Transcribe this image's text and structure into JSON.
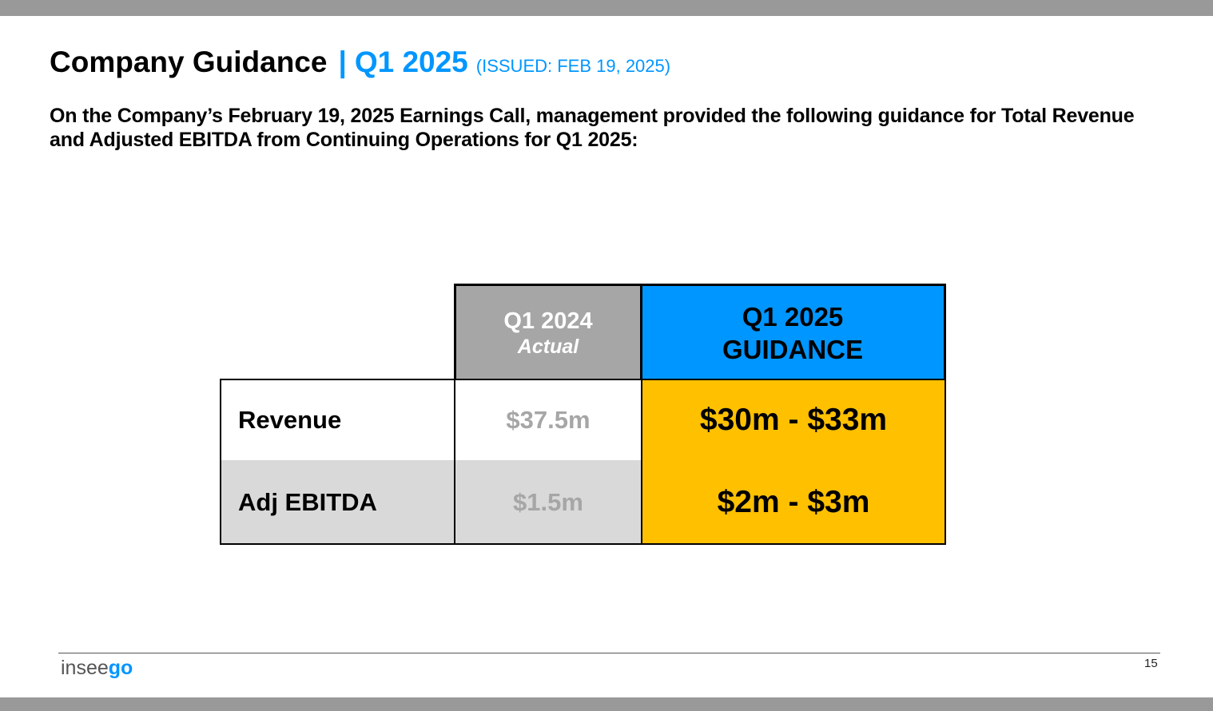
{
  "colors": {
    "accent": "#0096ff",
    "guidance_fill": "#ffc000",
    "actual_header_fill": "#a6a6a6",
    "muted_value": "#a6a6a6",
    "row_alt_fill": "#d9d9d9",
    "frame_bar": "#999999"
  },
  "title": {
    "main": "Company Guidance",
    "separator": "|",
    "period": "Q1 2025",
    "issued": "(ISSUED: FEB 19, 2025)"
  },
  "subtitle": "On the Company’s February 19, 2025 Earnings Call, management provided the following guidance for Total Revenue and Adjusted EBITDA from Continuing Operations for Q1 2025:",
  "table": {
    "col_actual": {
      "line1": "Q1 2024",
      "line2": "Actual"
    },
    "col_guidance": {
      "line1": "Q1 2025",
      "line2": "GUIDANCE"
    },
    "rows": [
      {
        "label": "Revenue",
        "actual": "$37.5m",
        "guidance": "$30m - $33m"
      },
      {
        "label": "Adj EBITDA",
        "actual": "$1.5m",
        "guidance": "$2m - $3m"
      }
    ]
  },
  "footer": {
    "logo_part1": "insee",
    "logo_part2": "go",
    "page_number": "15"
  }
}
